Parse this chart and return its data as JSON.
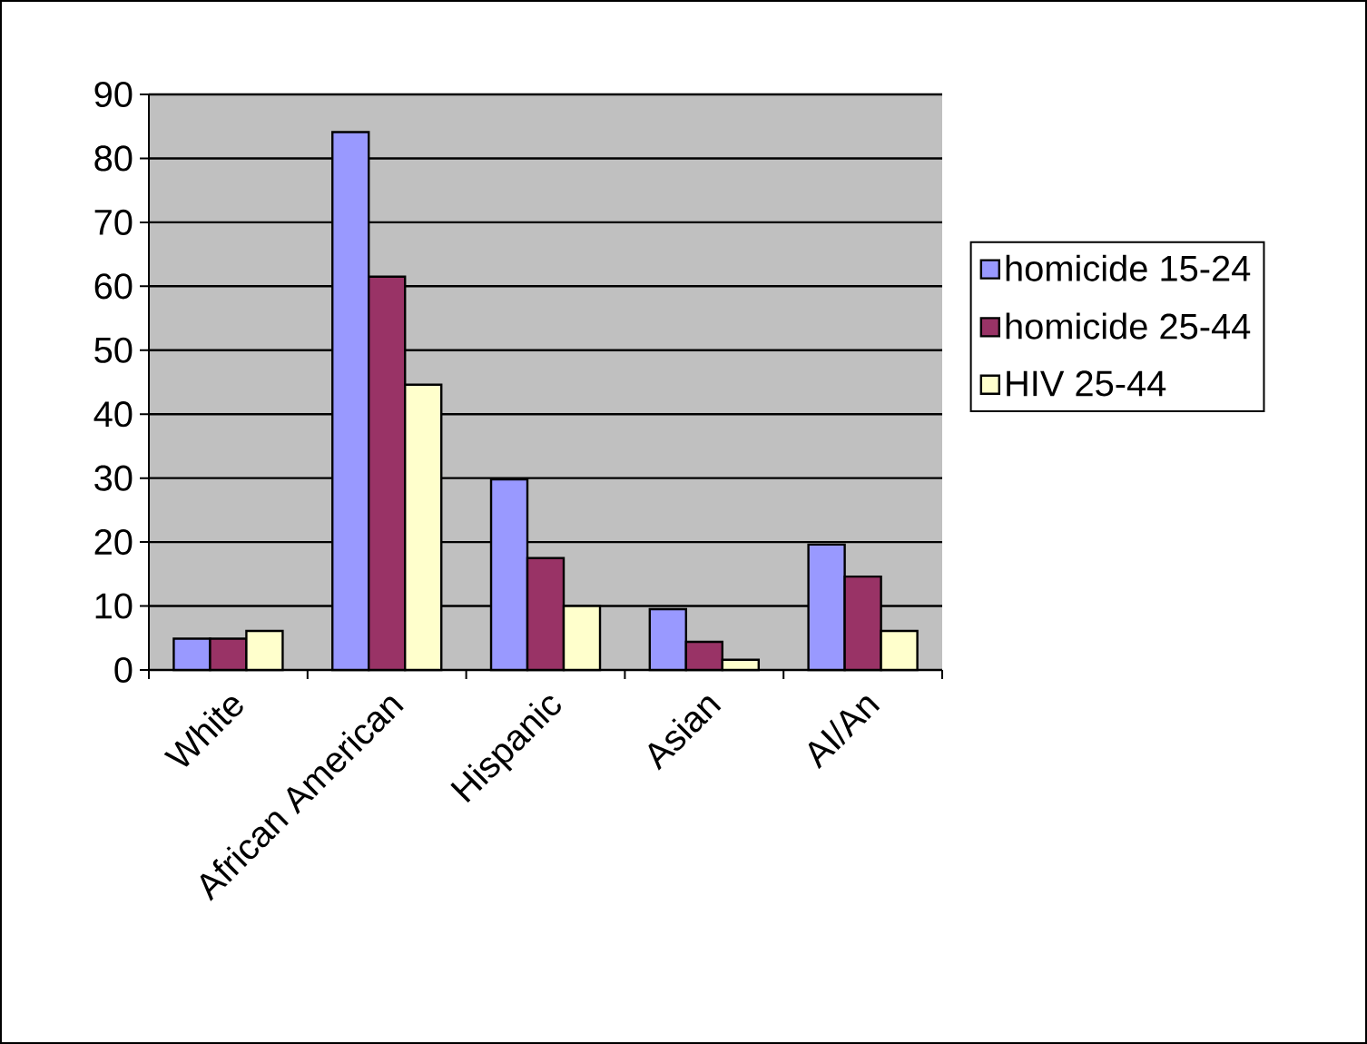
{
  "chart_data": {
    "type": "bar",
    "categories": [
      "White",
      "African American",
      "Hispanic",
      "Asian",
      "AI/An"
    ],
    "series": [
      {
        "name": "homicide 15-24",
        "color": "#9999ff",
        "values": [
          4.9,
          84.1,
          29.8,
          9.5,
          19.6
        ]
      },
      {
        "name": "homicide 25-44",
        "color": "#993366",
        "values": [
          4.9,
          61.5,
          17.5,
          4.4,
          14.6
        ]
      },
      {
        "name": "HIV 25-44",
        "color": "#ffffcc",
        "values": [
          6.1,
          44.6,
          10,
          1.6,
          6.1
        ]
      }
    ],
    "ylim": [
      0,
      90
    ],
    "yticks": [
      0,
      10,
      20,
      30,
      40,
      50,
      60,
      70,
      80,
      90
    ],
    "grid": "y",
    "legend": "right"
  }
}
